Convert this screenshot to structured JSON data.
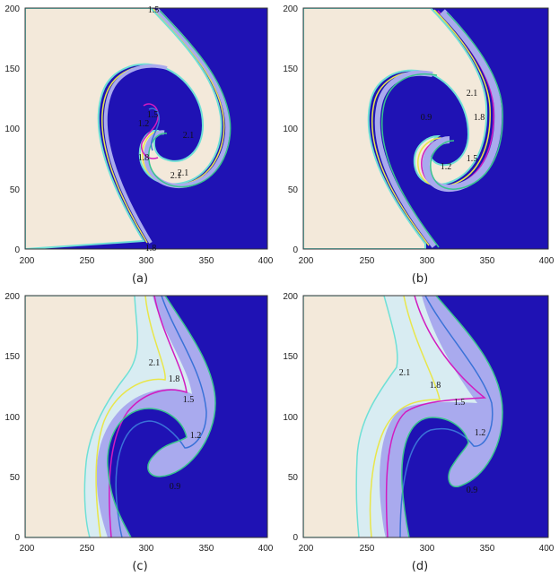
{
  "chart_data": [
    {
      "type": "contour",
      "caption": "(a)",
      "xlim": [
        200,
        400
      ],
      "ylim": [
        0,
        200
      ],
      "xticks": [
        "200",
        "250",
        "300",
        "350",
        "400"
      ],
      "yticks": [
        "0",
        "50",
        "100",
        "150",
        "200"
      ],
      "contour_levels": [
        "0.9",
        "1.2",
        "1.5",
        "1.8",
        "2.1"
      ],
      "labels": [
        {
          "text": "1.5",
          "x": 304,
          "y": 199
        },
        {
          "text": "1.8",
          "x": 305,
          "y": 1
        },
        {
          "text": "1.5",
          "x": 306,
          "y": 112
        },
        {
          "text": "1.2",
          "x": 302,
          "y": 103
        },
        {
          "text": "1.8",
          "x": 299,
          "y": 75
        },
        {
          "text": "2.1",
          "x": 338,
          "y": 93
        },
        {
          "text": "2.1",
          "x": 325,
          "y": 63
        },
        {
          "text": "2.1",
          "x": 318,
          "y": 61
        }
      ]
    },
    {
      "type": "contour",
      "caption": "(b)",
      "xlim": [
        200,
        400
      ],
      "ylim": [
        0,
        200
      ],
      "xticks": [
        "200",
        "250",
        "300",
        "350",
        "400"
      ],
      "yticks": [
        "0",
        "50",
        "100",
        "150",
        "200"
      ],
      "contour_levels": [
        "0.9",
        "1.2",
        "1.5",
        "1.8",
        "2.1"
      ],
      "labels": [
        {
          "text": "2.1",
          "x": 337,
          "y": 130
        },
        {
          "text": "1.8",
          "x": 343,
          "y": 110
        },
        {
          "text": "0.9",
          "x": 300,
          "y": 110
        },
        {
          "text": "1.5",
          "x": 335,
          "y": 77
        },
        {
          "text": "1.2",
          "x": 317,
          "y": 70
        }
      ]
    },
    {
      "type": "contour",
      "caption": "(c)",
      "xlim": [
        200,
        400
      ],
      "ylim": [
        0,
        200
      ],
      "xticks": [
        "200",
        "250",
        "300",
        "350",
        "400"
      ],
      "yticks": [
        "0",
        "50",
        "100",
        "150",
        "200"
      ],
      "contour_levels": [
        "0.9",
        "1.2",
        "1.5",
        "1.8",
        "2.1"
      ],
      "labels": [
        {
          "text": "2.1",
          "x": 310,
          "y": 145
        },
        {
          "text": "1.8",
          "x": 328,
          "y": 131
        },
        {
          "text": "1.5",
          "x": 337,
          "y": 112
        },
        {
          "text": "1.2",
          "x": 345,
          "y": 83
        },
        {
          "text": "0.9",
          "x": 328,
          "y": 39
        }
      ]
    },
    {
      "type": "contour",
      "caption": "(d)",
      "xlim": [
        200,
        400
      ],
      "ylim": [
        0,
        200
      ],
      "xticks": [
        "200",
        "250",
        "300",
        "350",
        "400"
      ],
      "yticks": [
        "0",
        "50",
        "100",
        "150",
        "200"
      ],
      "contour_levels": [
        "0.9",
        "1.2",
        "1.5",
        "1.8",
        "2.1"
      ],
      "labels": [
        {
          "text": "2.1",
          "x": 283,
          "y": 136
        },
        {
          "text": "1.8",
          "x": 312,
          "y": 126
        },
        {
          "text": "1.5",
          "x": 341,
          "y": 112
        },
        {
          "text": "1.2",
          "x": 361,
          "y": 86
        },
        {
          "text": "0.9",
          "x": 335,
          "y": 38
        }
      ]
    }
  ],
  "colors": {
    "light": "#f3e9da",
    "dark": "#1f12b4",
    "band": "#a9aaee",
    "pale": "#d8ecf2",
    "c09": "#39c48e",
    "c12": "#3a72d8",
    "c15": "#d21bc0",
    "c18": "#e9e64a",
    "c21": "#6fe0d6"
  }
}
